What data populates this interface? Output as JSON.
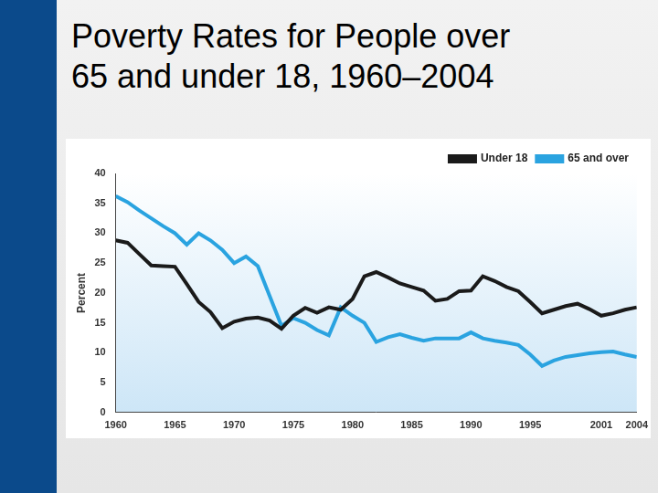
{
  "chart_data": {
    "type": "line",
    "title": "Poverty Rates for People over 65 and under 18, 1960–2004",
    "ylabel": "Percent",
    "x": [
      1960,
      1961,
      1962,
      1963,
      1964,
      1965,
      1966,
      1967,
      1968,
      1969,
      1970,
      1971,
      1972,
      1973,
      1974,
      1975,
      1976,
      1977,
      1978,
      1979,
      1980,
      1981,
      1982,
      1983,
      1984,
      1985,
      1986,
      1987,
      1988,
      1989,
      1990,
      1991,
      1992,
      1993,
      1994,
      1995,
      1996,
      1997,
      1998,
      1999,
      2000,
      2001,
      2002,
      2003,
      2004
    ],
    "series": [
      {
        "name": "Under 18",
        "color": "#1a1a1a",
        "values": [
          28.8,
          28.4,
          26.5,
          24.6,
          24.5,
          24.4,
          21.5,
          18.5,
          16.8,
          14.1,
          15.2,
          15.7,
          15.9,
          15.4,
          14.0,
          16.2,
          17.5,
          16.7,
          17.6,
          17.2,
          19.0,
          22.8,
          23.5,
          22.6,
          21.6,
          21.0,
          20.4,
          18.7,
          19.0,
          20.3,
          20.4,
          22.8,
          22.0,
          21.0,
          20.3,
          18.5,
          16.6,
          17.2,
          17.8,
          18.2,
          17.3,
          16.2,
          16.6,
          17.2,
          17.6
        ]
      },
      {
        "name": "65 and over",
        "color": "#2aa3e0",
        "values": [
          36.2,
          35.2,
          33.8,
          32.5,
          31.2,
          30.0,
          28.1,
          30.0,
          28.8,
          27.2,
          25.0,
          26.1,
          24.5,
          19.5,
          14.5,
          15.8,
          15.0,
          13.8,
          12.9,
          17.6,
          16.2,
          15.0,
          11.8,
          12.6,
          13.1,
          12.5,
          12.0,
          12.4,
          12.4,
          12.4,
          13.4,
          12.4,
          12.0,
          11.7,
          11.3,
          9.7,
          7.8,
          8.7,
          9.3,
          9.6,
          9.9,
          10.1,
          10.2,
          9.7,
          9.3
        ]
      }
    ],
    "xlim": [
      1960,
      2004
    ],
    "xticks": [
      1960,
      1965,
      1970,
      1975,
      1980,
      1985,
      1990,
      1995,
      2001,
      2004
    ],
    "ylim": [
      0,
      40
    ],
    "yticks": [
      0,
      5,
      10,
      15,
      20,
      25,
      30,
      35,
      40
    ],
    "grid": false,
    "legend": "upper right"
  }
}
